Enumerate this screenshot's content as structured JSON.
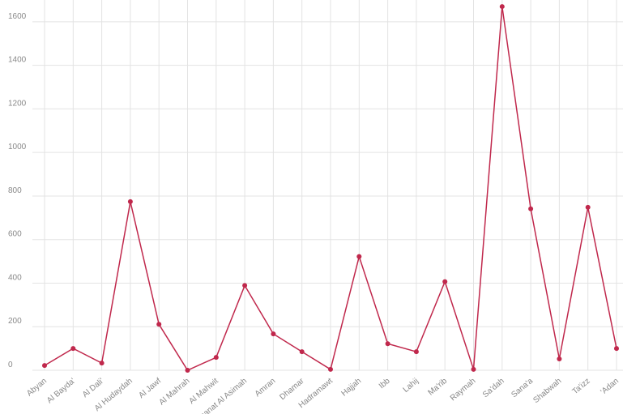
{
  "chart_data": {
    "type": "line",
    "categories": [
      "Abyan",
      "Al Bayda'",
      "Al Dali'",
      "Al Hudaydah",
      "Al Jawf",
      "Al Mahrah",
      "Al Mahwit",
      "Amanat Al Asimah",
      "Amran",
      "Dhamar",
      "Hadramawt",
      "Hajjah",
      "Ibb",
      "Lahij",
      "Ma'rib",
      "Raymah",
      "Sa'dah",
      "Sana'a",
      "Shabwah",
      "Ta'izz",
      "'Adan"
    ],
    "series": [
      {
        "color": "#c0284c",
        "values": [
          22,
          100,
          33,
          774,
          211,
          0,
          59,
          389,
          167,
          85,
          4,
          522,
          122,
          85,
          407,
          4,
          1670,
          741,
          52,
          748,
          100
        ]
      }
    ],
    "ylim": [
      0,
      1700
    ],
    "yticks": [
      0,
      200,
      400,
      600,
      800,
      1000,
      1200,
      1400,
      1600
    ],
    "grid": true
  }
}
